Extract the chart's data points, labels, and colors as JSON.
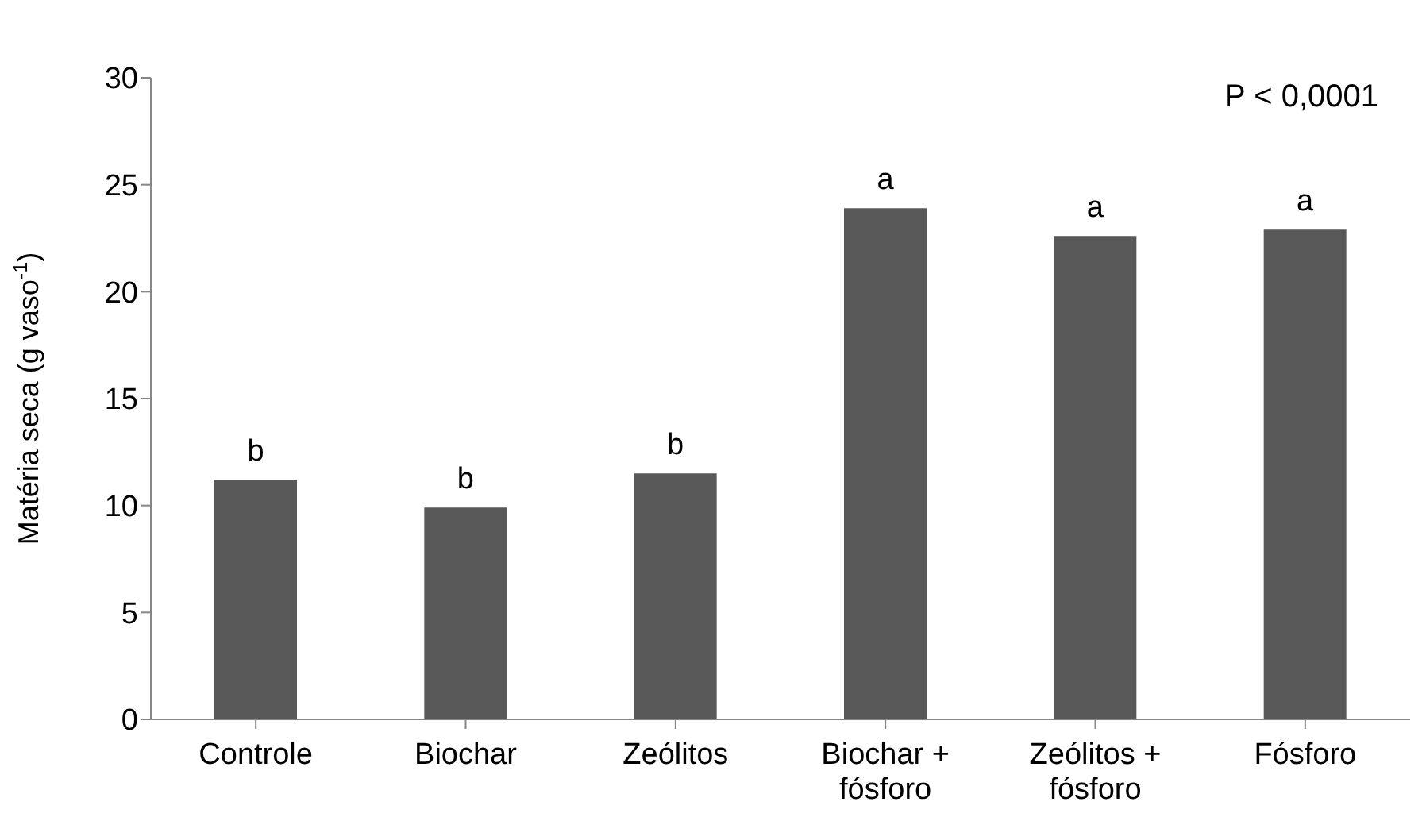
{
  "chart_data": {
    "type": "bar",
    "ylabel": "Matéria seca (g vaso$^{-1}$)",
    "categories": [
      "Controle",
      "Biochar",
      "Zeólitos",
      "Biochar + fósforo",
      "Zeólitos + fósforo",
      "Fósforo"
    ],
    "values": [
      11.2,
      9.9,
      11.5,
      23.9,
      22.6,
      22.9
    ],
    "color": "#595959",
    "ylim": [
      0,
      30
    ],
    "yticks": [
      0,
      5,
      10,
      15,
      20,
      25,
      30
    ],
    "grid": false,
    "annotations": [
      {
        "text": "b",
        "x": "Controle",
        "y": 11.2
      },
      {
        "text": "b",
        "x": "Biochar",
        "y": 9.9
      },
      {
        "text": "b",
        "x": "Zeólitos",
        "y": 11.5
      },
      {
        "text": "a",
        "x": "Biochar + fósforo",
        "y": 23.9
      },
      {
        "text": "a",
        "x": "Zeólitos + fósforo",
        "y": 22.6
      },
      {
        "text": "a",
        "x": "Fósforo",
        "y": 22.9
      },
      "P < 0,0001"
    ]
  }
}
